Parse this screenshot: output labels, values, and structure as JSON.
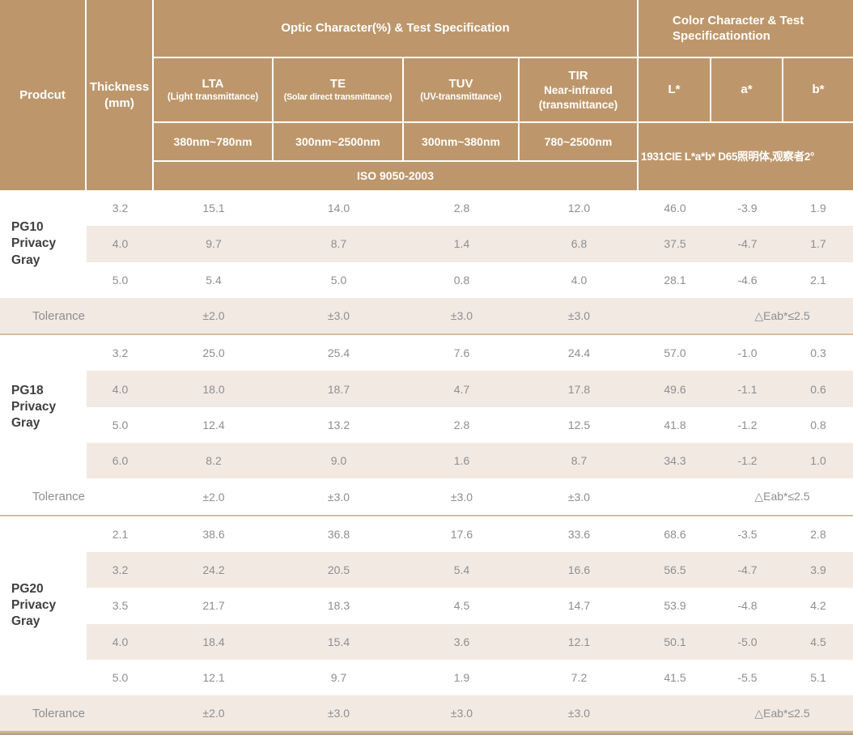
{
  "colors": {
    "header_bg": "#bd976b",
    "header_text": "#ffffff",
    "stripe_bg": "#f2e9e3",
    "group_separator": "#d6bda1",
    "bottom_border": "#cdb28c",
    "value_text": "#8e8e8e",
    "product_text": "#3f3f3f"
  },
  "header": {
    "product_label": "Prodcut",
    "thickness_line1": "Thickness",
    "thickness_line2": "(mm)",
    "optic_group": "Optic Character(%) & Test Specification",
    "color_group_line1": "Color Character & Test",
    "color_group_line2": "Specificationtion",
    "lta_abbr": "LTA",
    "lta_desc": "(Light transmittance)",
    "lta_range": "380nm~780nm",
    "te_abbr": "TE",
    "te_desc": "(Solar direct transmittance)",
    "te_range": "300nm~2500nm",
    "tuv_abbr": "TUV",
    "tuv_desc": "(UV-transmittance)",
    "tuv_range": "300nm~380nm",
    "tir_abbr": "TIR",
    "tir_line2": "Near-infrared",
    "tir_line3": "(transmittance)",
    "tir_range": "780~2500nm",
    "l_label": "L*",
    "a_label": "a*",
    "b_label": "b*",
    "iso_label": "ISO 9050-2003",
    "cie_label": "1931CIE L*a*b*  D65照明体,观察者2°"
  },
  "groups": [
    {
      "name_line1": "PG10",
      "name_line2": "Privacy Gray",
      "rows": [
        {
          "thickness": "3.2",
          "values": [
            "15.1",
            "14.0",
            "2.8",
            "12.0",
            "46.0",
            "-3.9",
            "1.9"
          ]
        },
        {
          "thickness": "4.0",
          "values": [
            "9.7",
            "8.7",
            "1.4",
            "6.8",
            "37.5",
            "-4.7",
            "1.7"
          ]
        },
        {
          "thickness": "5.0",
          "values": [
            "5.4",
            "5.0",
            "0.8",
            "4.0",
            "28.1",
            "-4.6",
            "2.1"
          ]
        }
      ],
      "tolerance": {
        "label": "Tolerance",
        "lta": "±2.0",
        "te": "±3.0",
        "tuv": "±3.0",
        "tir": "±3.0",
        "eab": "△Eab*≤2.5"
      }
    },
    {
      "name_line1": "PG18",
      "name_line2": "Privacy Gray",
      "rows": [
        {
          "thickness": "3.2",
          "values": [
            "25.0",
            "25.4",
            "7.6",
            "24.4",
            "57.0",
            "-1.0",
            "0.3"
          ]
        },
        {
          "thickness": "4.0",
          "values": [
            "18.0",
            "18.7",
            "4.7",
            "17.8",
            "49.6",
            "-1.1",
            "0.6"
          ]
        },
        {
          "thickness": "5.0",
          "values": [
            "12.4",
            "13.2",
            "2.8",
            "12.5",
            "41.8",
            "-1.2",
            "0.8"
          ]
        },
        {
          "thickness": "6.0",
          "values": [
            "8.2",
            "9.0",
            "1.6",
            "8.7",
            "34.3",
            "-1.2",
            "1.0"
          ]
        }
      ],
      "tolerance": {
        "label": "Tolerance",
        "lta": "±2.0",
        "te": "±3.0",
        "tuv": "±3.0",
        "tir": "±3.0",
        "eab": "△Eab*≤2.5"
      }
    },
    {
      "name_line1": "PG20",
      "name_line2": "Privacy Gray",
      "rows": [
        {
          "thickness": "2.1",
          "values": [
            "38.6",
            "36.8",
            "17.6",
            "33.6",
            "68.6",
            "-3.5",
            "2.8"
          ]
        },
        {
          "thickness": "3.2",
          "values": [
            "24.2",
            "20.5",
            "5.4",
            "16.6",
            "56.5",
            "-4.7",
            "3.9"
          ]
        },
        {
          "thickness": "3.5",
          "values": [
            "21.7",
            "18.3",
            "4.5",
            "14.7",
            "53.9",
            "-4.8",
            "4.2"
          ]
        },
        {
          "thickness": "4.0",
          "values": [
            "18.4",
            "15.4",
            "3.6",
            "12.1",
            "50.1",
            "-5.0",
            "4.5"
          ]
        },
        {
          "thickness": "5.0",
          "values": [
            "12.1",
            "9.7",
            "1.9",
            "7.2",
            "41.5",
            "-5.5",
            "5.1"
          ]
        }
      ],
      "tolerance": {
        "label": "Tolerance",
        "lta": "±2.0",
        "te": "±3.0",
        "tuv": "±3.0",
        "tir": "±3.0",
        "eab": "△Eab*≤2.5"
      }
    }
  ]
}
